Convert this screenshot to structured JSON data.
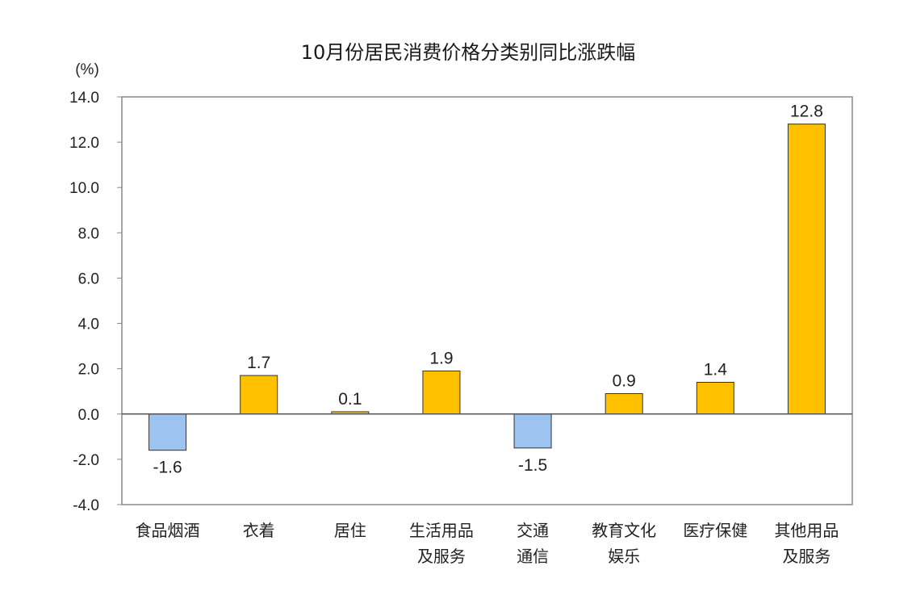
{
  "chart_data": {
    "type": "bar",
    "title": "10月份居民消费价格分类别同比涨跌幅",
    "ylabel": "(%)",
    "xlabel": "",
    "ylim": [
      -4.0,
      14.0
    ],
    "ytick_step": 2.0,
    "yticks": [
      "14.0",
      "12.0",
      "10.0",
      "8.0",
      "6.0",
      "4.0",
      "2.0",
      "0.0",
      "-2.0",
      "-4.0"
    ],
    "categories": [
      [
        "食品烟酒"
      ],
      [
        "衣着"
      ],
      [
        "居住"
      ],
      [
        "生活用品",
        "及服务"
      ],
      [
        "交通",
        "通信"
      ],
      [
        "教育文化",
        "娱乐"
      ],
      [
        "医疗保健"
      ],
      [
        "其他用品",
        "及服务"
      ]
    ],
    "values": [
      -1.6,
      1.7,
      0.1,
      1.9,
      -1.5,
      0.9,
      1.4,
      12.8
    ],
    "value_labels": [
      "-1.6",
      "1.7",
      "0.1",
      "1.9",
      "-1.5",
      "0.9",
      "1.4",
      "12.8"
    ],
    "colors": {
      "positive": "#ffc000",
      "negative": "#9dc3f0",
      "bar_border": "#333333",
      "axis": "#888888",
      "zero_line": "#555555"
    },
    "grid": false,
    "legend": "none"
  }
}
